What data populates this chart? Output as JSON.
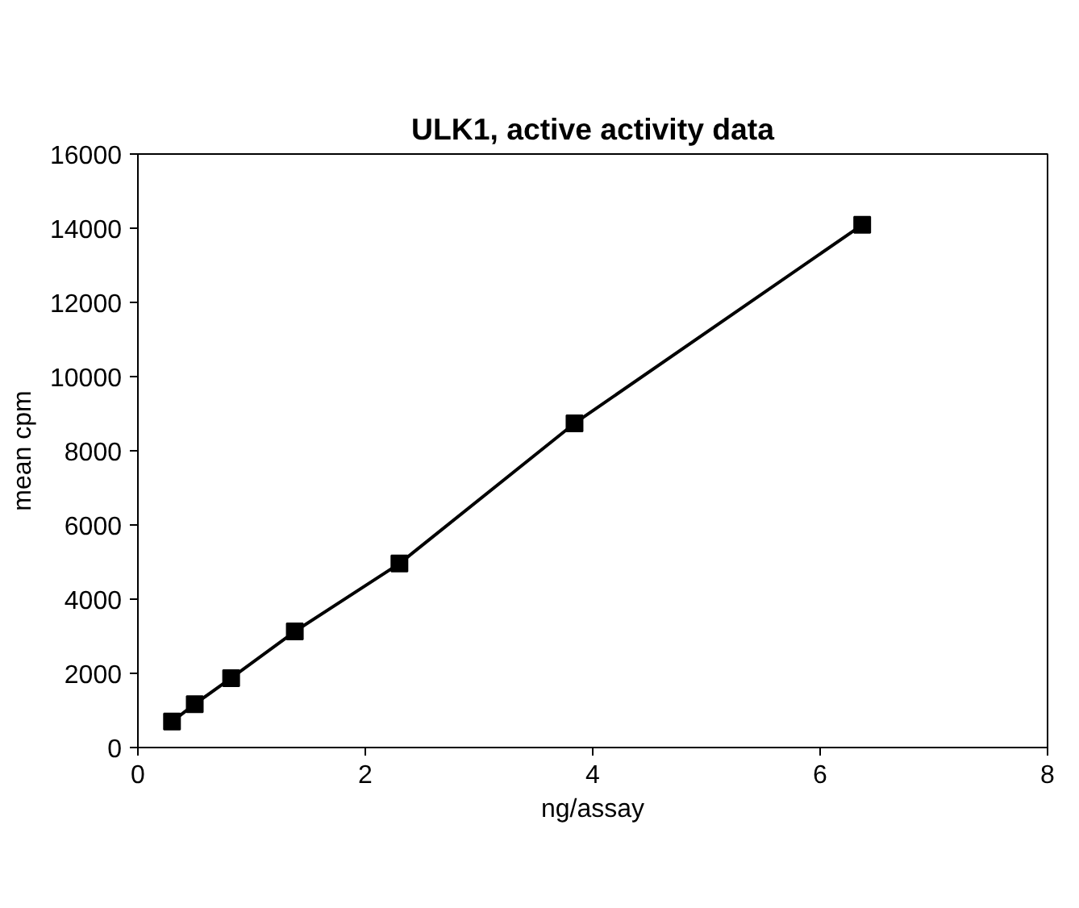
{
  "chart_data": {
    "type": "line",
    "title": "ULK1, active activity data",
    "xlabel": "ng/assay",
    "ylabel": "mean cpm",
    "x": [
      0.3,
      0.5,
      0.82,
      1.38,
      2.3,
      3.84,
      6.37
    ],
    "series": [
      {
        "color": "#000000",
        "values": [
          700,
          1170,
          1870,
          3130,
          4960,
          8740,
          14090
        ]
      }
    ],
    "xlim": [
      0,
      8
    ],
    "xticks": [
      0,
      2,
      4,
      6,
      8
    ],
    "ylim": [
      0,
      16000
    ],
    "yticks": [
      0,
      2000,
      4000,
      6000,
      8000,
      10000,
      12000,
      14000,
      16000
    ],
    "grid": false,
    "marker": "square",
    "line_style": "solid"
  }
}
